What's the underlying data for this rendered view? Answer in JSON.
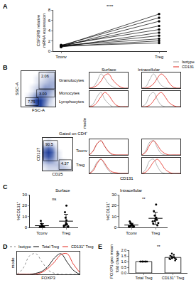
{
  "chart_data": [
    {
      "panel": "A",
      "type": "line",
      "y_label": [
        "CSF2RB relative",
        "mRNA expression"
      ],
      "categories": [
        "Tconv",
        "Treg"
      ],
      "series": [
        {
          "values": [
            1.0,
            7.2
          ]
        },
        {
          "values": [
            1.1,
            6.5
          ]
        },
        {
          "values": [
            0.9,
            5.8
          ]
        },
        {
          "values": [
            1.0,
            4.9
          ]
        },
        {
          "values": [
            1.2,
            4.2
          ]
        },
        {
          "values": [
            0.8,
            3.6
          ]
        },
        {
          "values": [
            1.0,
            3.0
          ]
        },
        {
          "values": [
            1.1,
            2.4
          ]
        },
        {
          "values": [
            0.9,
            2.0
          ]
        },
        {
          "values": [
            1.0,
            1.6
          ]
        }
      ],
      "color": "#000000",
      "marker": "circle",
      "ylim": [
        0,
        8
      ],
      "yticks": [
        0,
        2,
        4,
        6,
        8
      ],
      "annotations": [
        {
          "text": "****"
        }
      ]
    },
    {
      "panel": "B",
      "type": "heatmap",
      "x_label": "FSC-A",
      "y_label": "SSC-A",
      "color": "#1f3f9a",
      "tick_labels": false,
      "cells": [
        [
          0,
          0.1,
          0.4,
          0.9,
          1.0,
          0.6,
          0.2,
          0.1
        ],
        [
          0,
          0.1,
          0.5,
          1.0,
          1.0,
          0.7,
          0.3,
          0.1
        ],
        [
          0,
          0.1,
          0.3,
          0.6,
          0.7,
          0.6,
          0.4,
          0.2
        ],
        [
          0,
          0,
          0.1,
          0.3,
          0.5,
          0.6,
          0.5,
          0.3
        ],
        [
          0,
          0,
          0.1,
          0.2,
          0.3,
          0.5,
          0.5,
          0.4
        ],
        [
          0,
          0,
          0,
          0.1,
          0.2,
          0.3,
          0.4,
          0.4
        ],
        [
          0,
          0,
          0,
          0.1,
          0.1,
          0.2,
          0.3,
          0.3
        ],
        [
          0,
          0,
          0,
          0,
          0.1,
          0.1,
          0.2,
          0.2
        ]
      ],
      "gates": [
        {
          "name": "Granulocytes",
          "value": 2.06
        },
        {
          "name": "Monocytes",
          "value": 3,
          "value_label": "3.00"
        },
        {
          "name": "Lymphocytes",
          "value": 7.75
        }
      ]
    },
    {
      "type": "heatmap",
      "title": "Gated on CD4⁺",
      "x_label": "CD25",
      "y_label": "CD127",
      "color": "#1f3f9a",
      "tick_labels": false,
      "cells": [
        [
          0.1,
          0.2,
          0.2,
          0.2,
          0.3,
          0.3,
          0.2,
          0.1
        ],
        [
          0.2,
          0.3,
          0.3,
          0.3,
          0.3,
          0.2,
          0.1,
          0
        ],
        [
          0.4,
          0.6,
          0.5,
          0.3,
          0.2,
          0.1,
          0,
          0
        ],
        [
          0.7,
          0.9,
          0.7,
          0.3,
          0.1,
          0,
          0,
          0
        ],
        [
          0.8,
          1.0,
          0.8,
          0.3,
          0.1,
          0,
          0,
          0
        ],
        [
          0.6,
          0.8,
          0.6,
          0.2,
          0,
          0,
          0,
          0
        ],
        [
          0.2,
          0.3,
          0.2,
          0.1,
          0,
          0,
          0,
          0
        ],
        [
          0,
          0.1,
          0,
          0,
          0,
          0,
          0,
          0
        ]
      ],
      "gates": [
        {
          "name": "Tconv",
          "value": 90.5
        },
        {
          "name": "Treg",
          "value": 4.37
        }
      ]
    },
    {
      "type": "line",
      "x_label": "CD131",
      "y_label": "mode",
      "columns": [
        "Surface",
        "Intracellular"
      ],
      "legend": "top-right",
      "tick_labels": false,
      "x": [
        0,
        1,
        2,
        3,
        4,
        5,
        6,
        7,
        8,
        9,
        10
      ],
      "xlim": [
        0,
        10
      ],
      "ylim": [
        0,
        1.1
      ],
      "series": [
        {
          "name": "Isotype",
          "color": "#9e9e9e",
          "values": [
            [
              [
                0,
                0.1,
                0.5,
                1.0,
                0.7,
                0.3,
                0.1,
                0,
                0,
                0,
                0
              ],
              [
                0,
                0.1,
                0.6,
                1.0,
                0.6,
                0.2,
                0.05,
                0,
                0,
                0,
                0
              ]
            ],
            [
              [
                0,
                0.2,
                0.7,
                1.0,
                0.5,
                0.2,
                0,
                0,
                0,
                0,
                0
              ],
              [
                0,
                0.2,
                0.8,
                1.0,
                0.5,
                0.1,
                0,
                0,
                0,
                0,
                0
              ]
            ],
            [
              [
                0,
                0.3,
                0.8,
                1.0,
                0.6,
                0.2,
                0,
                0,
                0,
                0,
                0
              ],
              [
                0,
                0.3,
                0.9,
                1.0,
                0.5,
                0.1,
                0,
                0,
                0,
                0,
                0
              ]
            ],
            [
              [
                0,
                0.3,
                0.8,
                1.0,
                0.6,
                0.2,
                0,
                0,
                0,
                0,
                0
              ],
              [
                0,
                0.3,
                0.9,
                1.0,
                0.5,
                0.1,
                0,
                0,
                0,
                0,
                0
              ]
            ]
          ]
        },
        {
          "name": "CD131",
          "color": "#e3241b",
          "values": [
            [
              [
                0,
                0.05,
                0.2,
                0.5,
                0.9,
                1.0,
                0.6,
                0.3,
                0.1,
                0,
                0
              ],
              [
                0,
                0,
                0.1,
                0.3,
                0.7,
                1.0,
                0.8,
                0.4,
                0.1,
                0,
                0
              ]
            ],
            [
              [
                0,
                0.05,
                0.3,
                0.7,
                1.0,
                0.8,
                0.4,
                0.1,
                0,
                0,
                0
              ],
              [
                0,
                0,
                0.1,
                0.4,
                0.8,
                1.0,
                0.7,
                0.3,
                0.1,
                0,
                0
              ]
            ],
            [
              [
                0,
                0.3,
                0.8,
                1.0,
                0.6,
                0.25,
                0.05,
                0,
                0,
                0,
                0
              ],
              [
                0,
                0.2,
                0.7,
                1.0,
                0.7,
                0.3,
                0.1,
                0,
                0,
                0,
                0
              ]
            ],
            [
              [
                0,
                0.2,
                0.7,
                1.0,
                0.7,
                0.3,
                0.1,
                0.05,
                0,
                0,
                0
              ],
              [
                0,
                0.1,
                0.4,
                0.8,
                1.0,
                0.7,
                0.3,
                0.1,
                0,
                0,
                0
              ]
            ]
          ]
        }
      ]
    },
    {
      "panel": "C",
      "type": "scatter",
      "title": "Surface",
      "y_label": "%CD131⁺",
      "categories": [
        "Tconv",
        "Treg"
      ],
      "color": "#000000",
      "marker": "circle",
      "groups": [
        {
          "values": [
            0.2,
            0.5,
            1.0,
            0.3,
            1.5,
            2.0,
            0.8,
            3.5,
            0.1,
            6.0
          ],
          "mean": 1.59,
          "sd": 1.9
        },
        {
          "values": [
            0.5,
            1.2,
            2.5,
            4.0,
            6.5,
            9.0,
            3.0,
            14.0,
            1.8,
            20.0,
            0.9
          ],
          "mean": 5.76,
          "sd": 6.3
        }
      ],
      "ylim": [
        0,
        30
      ],
      "yticks": [
        0,
        10,
        20,
        30
      ],
      "annotations": [
        {
          "text": "ns"
        }
      ]
    },
    {
      "type": "scatter",
      "title": "Intracellular",
      "y_label": "%CD131⁺",
      "categories": [
        "Tconv",
        "Treg"
      ],
      "color": "#000000",
      "marker": "circle",
      "groups": [
        {
          "values": [
            0.5,
            1.0,
            2.0,
            1.5,
            3.0,
            0.8,
            2.5,
            4.0,
            1.2,
            5.5
          ],
          "mean": 2.2,
          "sd": 1.6
        },
        {
          "values": [
            2.0,
            4.0,
            5.5,
            7.0,
            3.5,
            9.0,
            11.0,
            6.0,
            15.0,
            8.0,
            21.0
          ],
          "mean": 8.36,
          "sd": 5.6
        }
      ],
      "ylim": [
        0,
        30
      ],
      "yticks": [
        0,
        10,
        20,
        30
      ],
      "annotations": [
        {
          "text": "**"
        }
      ]
    },
    {
      "panel": "D",
      "type": "line",
      "x_label": "FOXP3",
      "y_label": "mode",
      "legend": "top",
      "tick_labels": false,
      "x": [
        0,
        1,
        2,
        3,
        4,
        5,
        6,
        7,
        8,
        9,
        10
      ],
      "xlim": [
        0,
        10
      ],
      "ylim": [
        0,
        1.1
      ],
      "series": [
        {
          "name": "Isotype",
          "color": "#808080",
          "line_style": "dot",
          "values": [
            0,
            0.3,
            0.9,
            1.0,
            0.6,
            0.2,
            0.05,
            0,
            0,
            0,
            0
          ]
        },
        {
          "name": "Total Treg",
          "color": "#000000",
          "line_style": "solid",
          "values": [
            0,
            0,
            0,
            0.05,
            0.15,
            0.4,
            0.8,
            1.0,
            0.6,
            0.2,
            0
          ]
        },
        {
          "name": "CD131⁺ Treg",
          "color": "#e3241b",
          "line_style": "solid",
          "values": [
            0,
            0,
            0,
            0,
            0.1,
            0.3,
            0.6,
            0.95,
            1.0,
            0.5,
            0.1
          ]
        }
      ]
    },
    {
      "panel": "E",
      "type": "bar",
      "y_label": [
        "FOXP3 geo mean",
        "fold change"
      ],
      "categories": [
        "Total Treg",
        "CD131⁺ Treg"
      ],
      "values": [
        1,
        1.36
      ],
      "color": "#ffffff",
      "points": [
        [
          1,
          1,
          1,
          1,
          1,
          1,
          1,
          1,
          1,
          1,
          1,
          1
        ],
        [
          1.1,
          1.2,
          1.25,
          1.3,
          1.35,
          1.4,
          1.45,
          1.5,
          1.6,
          1.7,
          1.2,
          1.3
        ]
      ],
      "ylim": [
        0,
        2
      ],
      "yticks": [
        {
          "value": 0,
          "label": "0.0"
        },
        {
          "value": 0.5,
          "label": "0.5"
        },
        {
          "value": 1,
          "label": "1.0"
        },
        {
          "value": 1.5,
          "label": "1.5"
        },
        {
          "value": 2,
          "label": "2.0"
        }
      ],
      "annotations": [
        {
          "text": "**"
        }
      ]
    }
  ]
}
